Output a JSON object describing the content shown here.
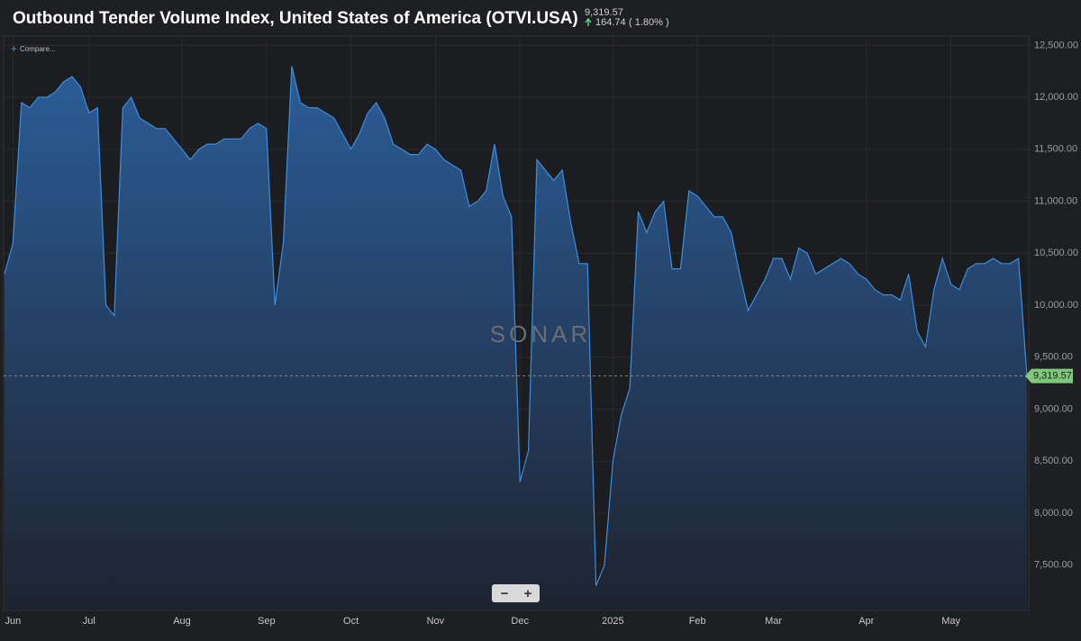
{
  "header": {
    "title": "Outbound Tender Volume Index, United States of America (OTVI.USA)",
    "value": "9,319.57",
    "change": "164.74",
    "change_pct": "( 1.80% )",
    "compare": "Compare...",
    "watermark": "SONAR",
    "zoom_out": "−",
    "zoom_in": "+"
  },
  "chart_data": {
    "type": "area",
    "color": "#3b8ee0",
    "grid": true,
    "categories": [
      null,
      "Jun",
      null,
      null,
      null,
      null,
      null,
      null,
      null,
      null,
      "Jul",
      null,
      null,
      null,
      null,
      null,
      null,
      null,
      null,
      null,
      null,
      "Aug",
      null,
      null,
      null,
      null,
      null,
      null,
      null,
      null,
      null,
      "Sep",
      null,
      null,
      null,
      null,
      null,
      null,
      null,
      null,
      null,
      "Oct",
      null,
      null,
      null,
      null,
      null,
      null,
      null,
      null,
      null,
      "Nov",
      null,
      null,
      null,
      null,
      null,
      null,
      null,
      null,
      null,
      "Dec",
      null,
      null,
      null,
      null,
      null,
      null,
      null,
      null,
      null,
      null,
      "2025",
      null,
      null,
      null,
      null,
      null,
      null,
      null,
      null,
      null,
      "Feb",
      null,
      null,
      null,
      null,
      null,
      null,
      null,
      null,
      "Mar",
      null,
      null,
      null,
      null,
      null,
      null,
      null,
      null,
      null,
      null,
      "Apr",
      null,
      null,
      null,
      null,
      null,
      null,
      null,
      null,
      null,
      "May",
      null,
      null,
      null,
      null,
      null,
      null,
      null,
      null,
      null
    ],
    "values": [
      10300,
      10600,
      11950,
      11900,
      12000,
      12000,
      12050,
      12150,
      12200,
      12100,
      11850,
      11900,
      10000,
      9900,
      11900,
      12000,
      11800,
      11750,
      11700,
      11700,
      11600,
      11500,
      11400,
      11500,
      11550,
      11550,
      11600,
      11600,
      11600,
      11700,
      11750,
      11700,
      10000,
      10600,
      12300,
      11950,
      11900,
      11900,
      11850,
      11800,
      11650,
      11500,
      11650,
      11850,
      11950,
      11800,
      11550,
      11500,
      11450,
      11450,
      11550,
      11500,
      11400,
      11350,
      11300,
      10950,
      11000,
      11100,
      11550,
      11050,
      10850,
      8300,
      8600,
      11400,
      11300,
      11200,
      11300,
      10800,
      10400,
      10400,
      7300,
      7500,
      8500,
      8950,
      9200,
      10900,
      10700,
      10900,
      11000,
      10350,
      10350,
      11100,
      11050,
      10950,
      10850,
      10850,
      10700,
      10300,
      9950,
      10100,
      10250,
      10450,
      10450,
      10250,
      10550,
      10500,
      10300,
      10350,
      10400,
      10450,
      10400,
      10300,
      10250,
      10150,
      10100,
      10100,
      10050,
      10300,
      9750,
      9600,
      10150,
      10450,
      10200,
      10150,
      10350,
      10400,
      10400,
      10450,
      10400,
      10400,
      10450,
      9319.57
    ],
    "ylim": [
      6960,
      12590
    ],
    "yticks": [
      {
        "value": 7500,
        "label": "7,500.00"
      },
      {
        "value": 8000,
        "label": "8,000.00"
      },
      {
        "value": 8500,
        "label": "8,500.00"
      },
      {
        "value": 9000,
        "label": "9,000.00"
      },
      {
        "value": 9500,
        "label": "9,500.00"
      },
      {
        "value": 10000,
        "label": "10,000.00"
      },
      {
        "value": 10500,
        "label": "10,500.00"
      },
      {
        "value": 11000,
        "label": "11,000.00"
      },
      {
        "value": 11500,
        "label": "11,500.00"
      },
      {
        "value": 12000,
        "label": "12,000.00"
      },
      {
        "value": 12500,
        "label": "12,500.00"
      }
    ]
  }
}
